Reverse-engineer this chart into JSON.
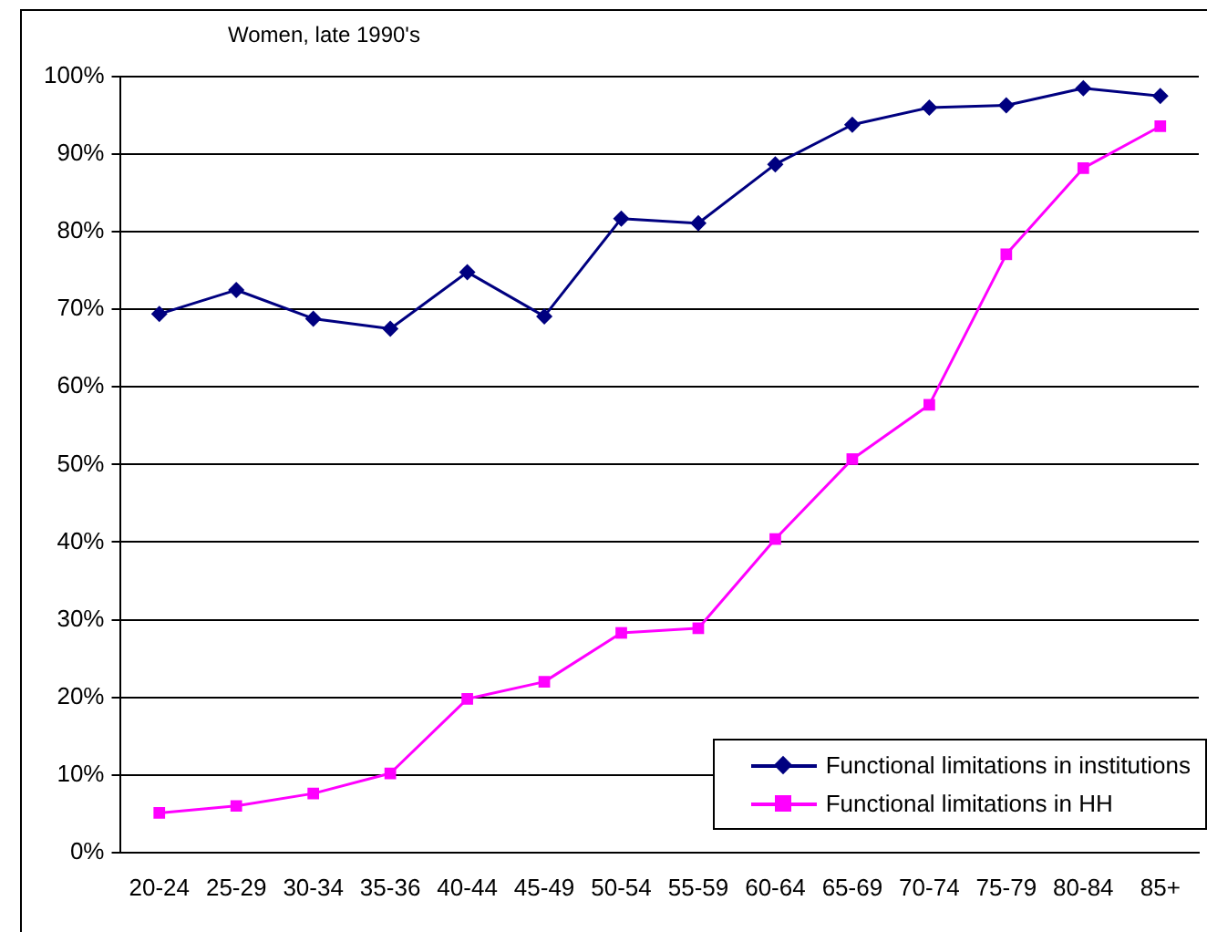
{
  "chart_data": {
    "type": "line",
    "title": "Women, late 1990's",
    "categories": [
      "20-24",
      "25-29",
      "30-34",
      "35-36",
      "40-44",
      "45-49",
      "50-54",
      "55-59",
      "60-64",
      "65-69",
      "70-74",
      "75-79",
      "80-84",
      "85+"
    ],
    "series": [
      {
        "name": "Functional limitations in institutions",
        "color": "#000080",
        "marker": "diamond",
        "values": [
          69.4,
          72.5,
          68.8,
          67.5,
          74.8,
          69.1,
          81.7,
          81.1,
          88.7,
          93.8,
          96.0,
          96.3,
          98.5,
          97.5
        ]
      },
      {
        "name": "Functional limitations in HH",
        "color": "#ff00ff",
        "marker": "square",
        "values": [
          5.1,
          6.0,
          7.6,
          10.2,
          19.8,
          22.0,
          28.3,
          28.9,
          40.4,
          50.7,
          57.7,
          77.1,
          88.2,
          93.6
        ]
      }
    ],
    "ylim": [
      0,
      100
    ],
    "yticks": [
      {
        "value": 0,
        "label": "0%"
      },
      {
        "value": 10,
        "label": "10%"
      },
      {
        "value": 20,
        "label": "20%"
      },
      {
        "value": 30,
        "label": "30%"
      },
      {
        "value": 40,
        "label": "40%"
      },
      {
        "value": 50,
        "label": "50%"
      },
      {
        "value": 60,
        "label": "60%"
      },
      {
        "value": 70,
        "label": "70%"
      },
      {
        "value": 80,
        "label": "80%"
      },
      {
        "value": 90,
        "label": "90%"
      },
      {
        "value": 100,
        "label": "100%"
      }
    ],
    "grid": "y",
    "legend": "bottom right",
    "line_style": "solid"
  }
}
